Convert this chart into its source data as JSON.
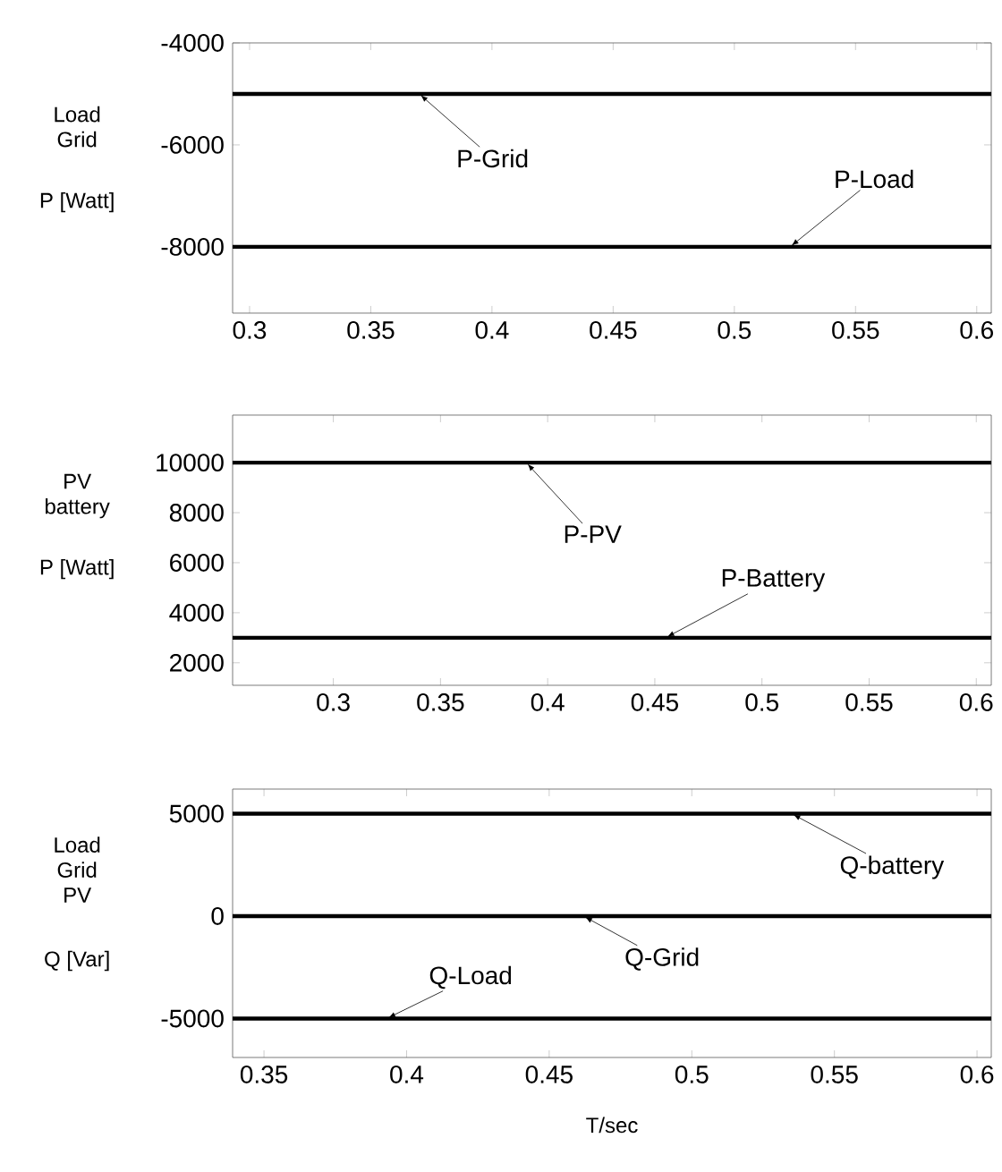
{
  "chart_data": [
    {
      "type": "line",
      "ylabel": "P [Watt]",
      "xlim": [
        0.293,
        0.606
      ],
      "ylim": [
        -9300,
        -4000
      ],
      "xticks": [
        0.3,
        0.35,
        0.4,
        0.45,
        0.5,
        0.55,
        0.6
      ],
      "yticks": [
        -4000,
        -6000,
        -8000
      ],
      "series": [
        {
          "color": "#000000",
          "x": [
            0.293,
            0.606
          ],
          "values": [
            -5000,
            -5000
          ]
        },
        {
          "color": "#000000",
          "x": [
            0.293,
            0.606
          ],
          "values": [
            -8000,
            -8000
          ]
        }
      ],
      "annotations": [
        "Load Grid",
        {
          "text": "P-Grid",
          "x": 0.37,
          "y": -5000
        },
        {
          "text": "P-Load",
          "x": 0.523,
          "y": -8000
        }
      ]
    },
    {
      "type": "line",
      "ylabel": "P [Watt]",
      "xlim": [
        0.253,
        0.607
      ],
      "ylim": [
        1100,
        11900
      ],
      "xticks": [
        0.3,
        0.35,
        0.4,
        0.45,
        0.5,
        0.55,
        0.6
      ],
      "yticks": [
        2000,
        4000,
        6000,
        8000,
        10000
      ],
      "series": [
        {
          "color": "#000000",
          "x": [
            0.253,
            0.607
          ],
          "values": [
            10000,
            10000
          ]
        },
        {
          "color": "#000000",
          "x": [
            0.253,
            0.607
          ],
          "values": [
            3000,
            3000
          ]
        }
      ],
      "annotations": [
        "PV battery",
        {
          "text": "P-PV",
          "x": 0.39,
          "y": 10000
        },
        {
          "text": "P-Battery",
          "x": 0.455,
          "y": 3000
        }
      ]
    },
    {
      "type": "line",
      "ylabel": "Q [Var]",
      "xlabel": "T/sec",
      "xlim": [
        0.339,
        0.605
      ],
      "ylim": [
        -6900,
        6200
      ],
      "xticks": [
        0.35,
        0.4,
        0.45,
        0.5,
        0.55,
        0.6
      ],
      "yticks": [
        -5000,
        0,
        5000
      ],
      "series": [
        {
          "color": "#000000",
          "x": [
            0.339,
            0.605
          ],
          "values": [
            5000,
            5000
          ]
        },
        {
          "color": "#000000",
          "x": [
            0.339,
            0.605
          ],
          "values": [
            0,
            0
          ]
        },
        {
          "color": "#000000",
          "x": [
            0.339,
            0.605
          ],
          "values": [
            -5000,
            -5000
          ]
        }
      ],
      "annotations": [
        "Load Grid PV",
        {
          "text": "Q-battery",
          "x": 0.535,
          "y": 5000
        },
        {
          "text": "Q-Grid",
          "x": 0.462,
          "y": 0
        },
        {
          "text": "Q-Load",
          "x": 0.393,
          "y": -5000
        }
      ]
    }
  ]
}
